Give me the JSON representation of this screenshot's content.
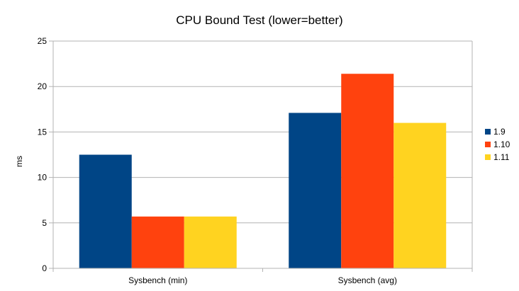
{
  "chart_data": {
    "type": "bar",
    "title": "CPU Bound Test (lower=better)",
    "xlabel": "",
    "ylabel": "ms",
    "ylim": [
      0,
      25
    ],
    "yticks": [
      0,
      5,
      10,
      15,
      20,
      25
    ],
    "categories": [
      "Sysbench (min)",
      "Sysbench (avg)"
    ],
    "series": [
      {
        "name": "1.9",
        "color": "#004586",
        "values": [
          12.5,
          17.1
        ]
      },
      {
        "name": "1.10",
        "color": "#ff420e",
        "values": [
          5.7,
          21.4
        ]
      },
      {
        "name": "1.11",
        "color": "#ffd320",
        "values": [
          5.7,
          16.0
        ]
      }
    ],
    "grid": true,
    "legend_position": "right"
  }
}
